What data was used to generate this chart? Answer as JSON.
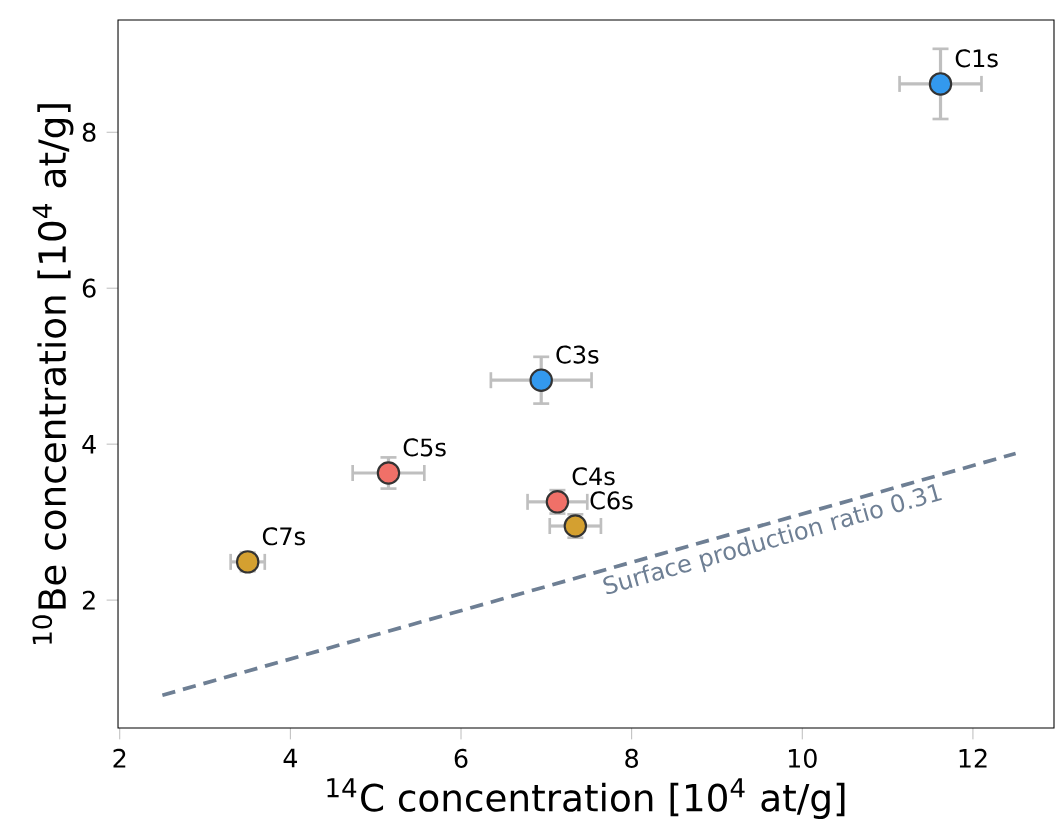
{
  "chart_data": {
    "type": "scatter",
    "xlabel": "$^{14}$C concentration [10$^{4}$ at/g]",
    "ylabel": "$^{10}$Be concentration [10$^{4}$ at/g]",
    "xlim": [
      1.98,
      12.95
    ],
    "ylim": [
      0.36,
      9.44
    ],
    "xticks": [
      2,
      4,
      6,
      8,
      10,
      12
    ],
    "yticks": [
      2,
      4,
      6,
      8
    ],
    "grid": false,
    "series": [
      {
        "color": "#3399ee",
        "marker": "circle",
        "x": [
          11.62,
          6.94
        ],
        "values": [
          8.62,
          4.82
        ],
        "errors": [
          0.45,
          0.3
        ],
        "xerrors": [
          0.48,
          0.59
        ]
      },
      {
        "color": "#f07068",
        "marker": "circle",
        "x": [
          5.15,
          7.13
        ],
        "values": [
          3.63,
          3.26
        ],
        "errors": [
          0.2,
          0.15
        ],
        "xerrors": [
          0.42,
          0.35
        ]
      },
      {
        "color": "#d4a030",
        "marker": "circle",
        "x": [
          7.34,
          3.5
        ],
        "values": [
          2.95,
          2.49
        ],
        "errors": [
          0.15,
          0.12
        ],
        "xerrors": [
          0.3,
          0.2
        ]
      },
      {
        "type": "line",
        "color": "#6e7f94",
        "line_style": "dashed",
        "marker": "none",
        "x": [
          2.5,
          12.5
        ],
        "values": [
          0.78,
          3.88
        ]
      }
    ],
    "annotations": [
      {
        "text": "C1s",
        "x": 11.62,
        "y": 8.62
      },
      {
        "text": "C3s",
        "x": 6.94,
        "y": 4.82
      },
      {
        "text": "C5s",
        "x": 5.15,
        "y": 3.63
      },
      {
        "text": "C4s",
        "x": 7.13,
        "y": 3.26
      },
      {
        "text": "C6s",
        "x": 7.34,
        "y": 2.95
      },
      {
        "text": "C7s",
        "x": 3.5,
        "y": 2.49
      },
      {
        "text": "Surface production ratio 0.31",
        "x": 9.6,
        "y": 2.976
      }
    ]
  }
}
